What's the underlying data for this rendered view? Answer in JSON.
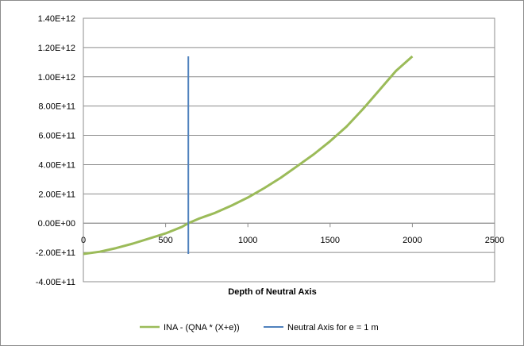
{
  "chart_data": {
    "type": "line",
    "title": "",
    "xlabel": "Depth of Neutral Axis",
    "ylabel": "",
    "xlim": [
      0,
      2500
    ],
    "ylim": [
      -400000000000,
      1400000000000
    ],
    "x_ticks": [
      0,
      500,
      1000,
      1500,
      2000,
      2500
    ],
    "x_tick_labels": [
      "0",
      "500",
      "1000",
      "1500",
      "2000",
      "2500"
    ],
    "y_ticks": [
      1400000000000,
      1200000000000,
      1000000000000,
      800000000000,
      600000000000,
      400000000000,
      200000000000,
      0,
      -200000000000,
      -400000000000
    ],
    "y_tick_labels": [
      "1.40E+12",
      "1.20E+12",
      "1.00E+12",
      "8.00E+11",
      "6.00E+11",
      "4.00E+11",
      "2.00E+11",
      "0.00E+00",
      "-2.00E+11",
      "-4.00E+11"
    ],
    "grid": true,
    "legend_position": "bottom",
    "series": [
      {
        "name": "INA - (QNA * (X+e))",
        "color": "#9bbb59",
        "x": [
          0,
          100,
          200,
          300,
          400,
          500,
          600,
          638,
          700,
          800,
          900,
          1000,
          1100,
          1200,
          1300,
          1400,
          1500,
          1600,
          1700,
          1800,
          1900,
          2000
        ],
        "y": [
          -210000000000,
          -195000000000,
          -170000000000,
          -140000000000,
          -105000000000,
          -70000000000,
          -25000000000,
          0,
          30000000000,
          70000000000,
          120000000000,
          175000000000,
          240000000000,
          310000000000,
          390000000000,
          470000000000,
          560000000000,
          660000000000,
          780000000000,
          910000000000,
          1040000000000,
          1140000000000
        ]
      },
      {
        "name": "Neutral Axis for e = 1 m",
        "color": "#4f81bd",
        "x": [
          638,
          638
        ],
        "y": [
          -210000000000,
          1140000000000
        ]
      }
    ]
  }
}
